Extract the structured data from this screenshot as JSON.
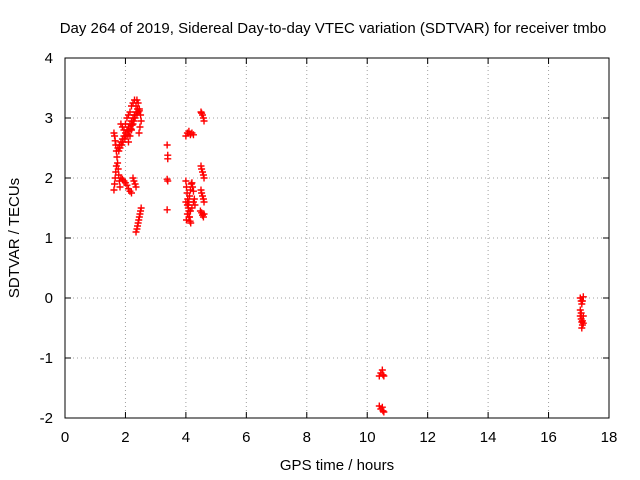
{
  "chart_data": {
    "type": "scatter",
    "title": "Day 264 of 2019, Sidereal Day-to-day VTEC variation (SDTVAR) for receiver tmbo",
    "xlabel": "GPS time / hours",
    "ylabel": "SDTVAR / TECUs",
    "xlim": [
      0,
      18
    ],
    "ylim": [
      -2,
      4
    ],
    "grid": true,
    "marker": "+",
    "series_color": "#ff0000",
    "x_ticks": [
      0,
      2,
      4,
      6,
      8,
      10,
      12,
      14,
      16,
      18
    ],
    "y_ticks": [
      -2,
      -1,
      0,
      1,
      2,
      3,
      4
    ],
    "series": [
      {
        "name": "SDTVAR",
        "points": [
          [
            1.62,
            2.75
          ],
          [
            1.64,
            2.7
          ],
          [
            1.66,
            2.62
          ],
          [
            1.68,
            2.55
          ],
          [
            1.7,
            2.45
          ],
          [
            1.72,
            2.35
          ],
          [
            1.74,
            2.25
          ],
          [
            1.76,
            2.15
          ],
          [
            1.78,
            2.05
          ],
          [
            1.8,
            1.95
          ],
          [
            1.82,
            1.85
          ],
          [
            1.62,
            1.8
          ],
          [
            1.64,
            1.9
          ],
          [
            1.66,
            2.0
          ],
          [
            1.68,
            2.1
          ],
          [
            1.7,
            2.2
          ],
          [
            1.75,
            2.5
          ],
          [
            1.8,
            2.55
          ],
          [
            1.85,
            2.6
          ],
          [
            1.9,
            2.65
          ],
          [
            1.95,
            2.7
          ],
          [
            2.0,
            2.75
          ],
          [
            2.05,
            2.8
          ],
          [
            2.1,
            2.85
          ],
          [
            2.15,
            2.9
          ],
          [
            2.2,
            2.95
          ],
          [
            2.25,
            3.0
          ],
          [
            2.3,
            3.05
          ],
          [
            2.35,
            3.1
          ],
          [
            2.4,
            3.15
          ],
          [
            1.78,
            2.45
          ],
          [
            1.82,
            2.5
          ],
          [
            1.88,
            2.55
          ],
          [
            1.92,
            2.6
          ],
          [
            1.98,
            2.65
          ],
          [
            2.02,
            2.7
          ],
          [
            2.08,
            2.72
          ],
          [
            2.12,
            2.78
          ],
          [
            2.18,
            2.82
          ],
          [
            2.22,
            2.88
          ],
          [
            2.28,
            2.95
          ],
          [
            2.32,
            3.0
          ],
          [
            2.38,
            3.05
          ],
          [
            2.42,
            3.1
          ],
          [
            2.46,
            3.12
          ],
          [
            2.1,
            2.6
          ],
          [
            2.15,
            2.7
          ],
          [
            2.2,
            2.8
          ],
          [
            2.25,
            2.9
          ],
          [
            2.3,
            3.05
          ],
          [
            2.35,
            3.2
          ],
          [
            2.38,
            3.3
          ],
          [
            2.42,
            3.25
          ],
          [
            2.46,
            3.15
          ],
          [
            2.5,
            3.05
          ],
          [
            2.52,
            2.95
          ],
          [
            2.48,
            2.85
          ],
          [
            2.45,
            2.75
          ],
          [
            1.85,
            2.9
          ],
          [
            1.9,
            2.85
          ],
          [
            1.95,
            2.8
          ],
          [
            2.0,
            2.9
          ],
          [
            2.05,
            3.0
          ],
          [
            2.1,
            3.05
          ],
          [
            2.15,
            3.1
          ],
          [
            2.2,
            3.2
          ],
          [
            2.25,
            3.25
          ],
          [
            2.3,
            3.3
          ],
          [
            1.85,
            2.0
          ],
          [
            1.9,
            1.98
          ],
          [
            1.95,
            1.95
          ],
          [
            2.0,
            1.92
          ],
          [
            2.05,
            1.88
          ],
          [
            2.1,
            1.82
          ],
          [
            2.15,
            1.78
          ],
          [
            2.2,
            1.75
          ],
          [
            2.25,
            2.0
          ],
          [
            2.28,
            1.95
          ],
          [
            2.32,
            1.9
          ],
          [
            2.35,
            1.85
          ],
          [
            2.35,
            1.1
          ],
          [
            2.38,
            1.15
          ],
          [
            2.4,
            1.2
          ],
          [
            2.42,
            1.25
          ],
          [
            2.44,
            1.3
          ],
          [
            2.46,
            1.35
          ],
          [
            2.48,
            1.4
          ],
          [
            2.5,
            1.45
          ],
          [
            2.52,
            1.5
          ],
          [
            3.38,
            2.55
          ],
          [
            3.4,
            2.38
          ],
          [
            3.4,
            2.32
          ],
          [
            3.38,
            1.98
          ],
          [
            3.4,
            1.95
          ],
          [
            3.38,
            1.47
          ],
          [
            4.0,
            2.7
          ],
          [
            4.05,
            2.75
          ],
          [
            4.1,
            2.78
          ],
          [
            4.15,
            2.72
          ],
          [
            4.2,
            2.75
          ],
          [
            4.25,
            2.72
          ],
          [
            4.0,
            1.95
          ],
          [
            4.02,
            1.85
          ],
          [
            4.04,
            1.75
          ],
          [
            4.06,
            1.65
          ],
          [
            4.08,
            1.55
          ],
          [
            4.1,
            1.45
          ],
          [
            4.12,
            1.35
          ],
          [
            4.14,
            1.28
          ],
          [
            4.16,
            1.25
          ],
          [
            4.02,
            1.3
          ],
          [
            4.05,
            1.4
          ],
          [
            4.08,
            1.5
          ],
          [
            4.1,
            1.6
          ],
          [
            4.12,
            1.7
          ],
          [
            4.15,
            1.8
          ],
          [
            4.18,
            1.9
          ],
          [
            4.2,
            1.92
          ],
          [
            4.22,
            1.85
          ],
          [
            4.25,
            1.78
          ],
          [
            4.0,
            1.6
          ],
          [
            4.05,
            1.55
          ],
          [
            4.1,
            1.35
          ],
          [
            4.15,
            1.45
          ],
          [
            4.2,
            1.5
          ],
          [
            4.25,
            1.6
          ],
          [
            4.28,
            1.65
          ],
          [
            4.3,
            1.55
          ],
          [
            4.5,
            3.1
          ],
          [
            4.52,
            3.08
          ],
          [
            4.55,
            3.05
          ],
          [
            4.58,
            3.0
          ],
          [
            4.6,
            2.95
          ],
          [
            4.5,
            2.2
          ],
          [
            4.52,
            2.15
          ],
          [
            4.55,
            2.1
          ],
          [
            4.58,
            2.05
          ],
          [
            4.6,
            2.0
          ],
          [
            4.5,
            1.8
          ],
          [
            4.52,
            1.75
          ],
          [
            4.55,
            1.7
          ],
          [
            4.58,
            1.65
          ],
          [
            4.6,
            1.6
          ],
          [
            4.48,
            1.45
          ],
          [
            4.52,
            1.42
          ],
          [
            4.55,
            1.38
          ],
          [
            4.58,
            1.35
          ],
          [
            4.6,
            1.4
          ],
          [
            10.4,
            -1.3
          ],
          [
            10.45,
            -1.25
          ],
          [
            10.5,
            -1.2
          ],
          [
            10.52,
            -1.28
          ],
          [
            10.55,
            -1.3
          ],
          [
            10.4,
            -1.8
          ],
          [
            10.45,
            -1.85
          ],
          [
            10.5,
            -1.82
          ],
          [
            10.52,
            -1.88
          ],
          [
            10.55,
            -1.9
          ],
          [
            17.05,
            0.0
          ],
          [
            17.08,
            -0.05
          ],
          [
            17.1,
            -0.1
          ],
          [
            17.12,
            -0.05
          ],
          [
            17.15,
            0.02
          ],
          [
            17.05,
            -0.3
          ],
          [
            17.08,
            -0.35
          ],
          [
            17.1,
            -0.4
          ],
          [
            17.12,
            -0.45
          ],
          [
            17.15,
            -0.3
          ],
          [
            17.05,
            -0.2
          ],
          [
            17.08,
            -0.25
          ],
          [
            17.1,
            -0.5
          ],
          [
            17.12,
            -0.38
          ],
          [
            17.15,
            -0.42
          ]
        ]
      }
    ]
  }
}
